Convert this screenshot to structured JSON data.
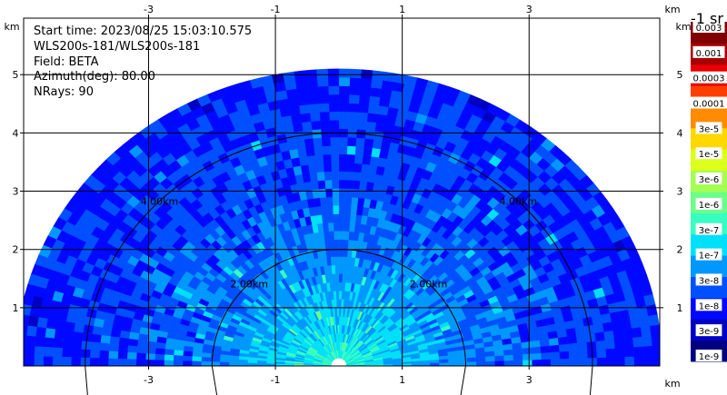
{
  "chart_data": {
    "type": "heatmap",
    "subtype": "radar-sector-scan",
    "info": {
      "start_time": "Start time: 2023/08/25 15:03:10.575",
      "instrument": "WLS200s-181/WLS200s-181",
      "field": "Field: BETA",
      "azimuth": "Azimuth(deg): 80.00",
      "nrays": "NRays: 90"
    },
    "x_axis": {
      "unit": "km",
      "range": [
        -4.97,
        5.06
      ],
      "ticks": [
        -3,
        -1,
        1,
        3
      ],
      "tick_labels": [
        "-3",
        "-1",
        "1",
        "3"
      ]
    },
    "y_axis": {
      "unit": "km",
      "range": [
        0,
        5.97
      ],
      "ticks": [
        1,
        2,
        3,
        4,
        5
      ],
      "tick_labels": [
        "1",
        "2",
        "3",
        "4",
        "5"
      ]
    },
    "grid": true,
    "scan": {
      "max_range_km": 5.1,
      "min_range_km": 0.12,
      "sector_deg": [
        0,
        180
      ],
      "range_gates": 34,
      "rays": 90
    },
    "range_rings": [
      {
        "km": 2,
        "label": "2.00km"
      },
      {
        "km": 4,
        "label": "4.00km"
      }
    ],
    "colorbar": {
      "title": "-1 sr",
      "position": "right",
      "labels": [
        "1e-9",
        "3e-9",
        "1e-8",
        "3e-8",
        "1e-7",
        "3e-7",
        "1e-6",
        "3e-6",
        "1e-5",
        "3e-5",
        "0.0001",
        "0.0003",
        "0.001",
        "0.003"
      ],
      "colors": [
        "#000080",
        "#0000c4",
        "#0008ff",
        "#0050ff",
        "#0098ff",
        "#00e0f8",
        "#36ffc1",
        "#6cff8a",
        "#a4ff53",
        "#dcff1c",
        "#ffd800",
        "#ff8c00",
        "#ff3f00",
        "#e80000",
        "#a80000",
        "#7f0000"
      ]
    },
    "value_field": {
      "near_log10": -6.6,
      "mid_log10": -7.5,
      "far_log10": -7.9,
      "noise_log10": 0.35
    }
  }
}
